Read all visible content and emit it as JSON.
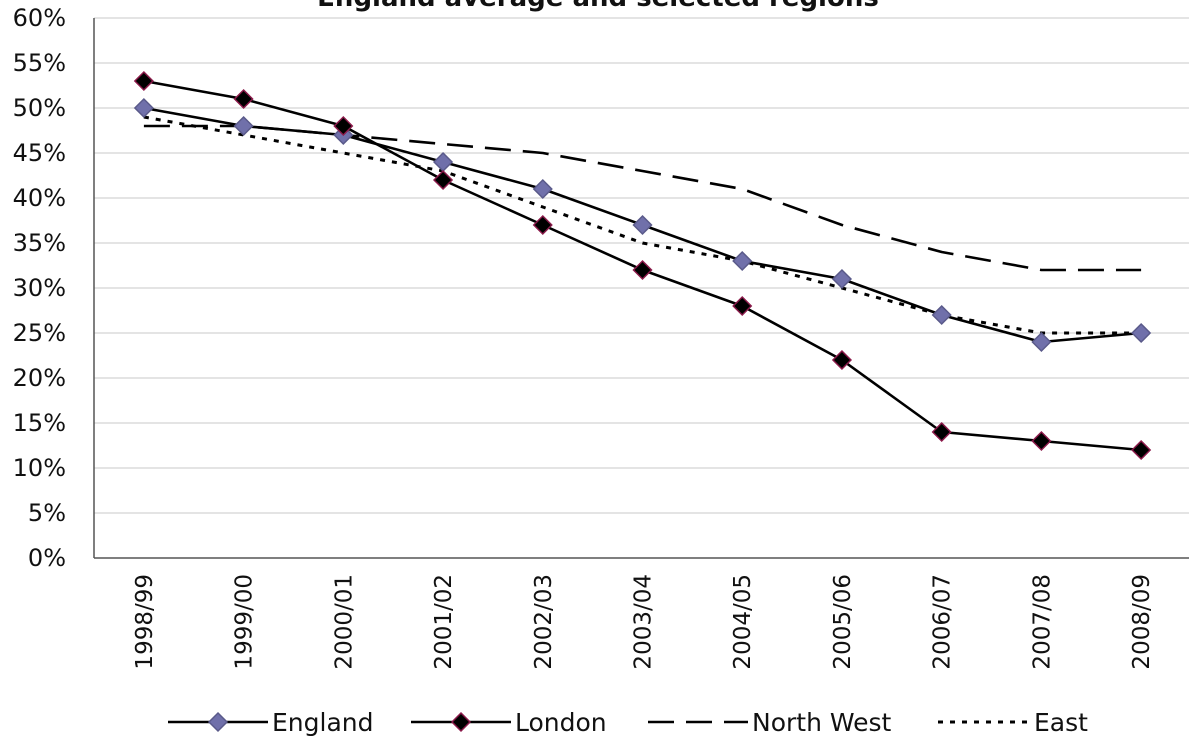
{
  "chart_data": {
    "type": "line",
    "title": "England average and selected regions",
    "xlabel": "",
    "ylabel": "",
    "categories": [
      "1998/99",
      "1999/00",
      "2000/01",
      "2001/02",
      "2002/03",
      "2003/04",
      "2004/05",
      "2005/06",
      "2006/07",
      "2007/08",
      "2008/09"
    ],
    "ylim": [
      0,
      60
    ],
    "ytick_step": 5,
    "yticks": [
      "0%",
      "5%",
      "10%",
      "15%",
      "20%",
      "25%",
      "30%",
      "35%",
      "40%",
      "45%",
      "50%",
      "55%",
      "60%"
    ],
    "grid": true,
    "legend_position": "bottom",
    "series": [
      {
        "name": "England",
        "values": [
          50,
          48,
          47,
          44,
          41,
          37,
          33,
          31,
          27,
          24,
          25
        ],
        "line_style": "solid",
        "marker": "diamond",
        "marker_color": "#7070aa",
        "line_color": "#000000"
      },
      {
        "name": "London",
        "values": [
          53,
          51,
          48,
          42,
          37,
          32,
          28,
          22,
          14,
          13,
          12
        ],
        "line_style": "solid",
        "marker": "diamond",
        "marker_color": "#000000",
        "marker_edge": "#8b1a4a",
        "line_color": "#000000"
      },
      {
        "name": "North West",
        "values": [
          48,
          48,
          47,
          46,
          45,
          43,
          41,
          37,
          34,
          32,
          32
        ],
        "line_style": "long-dash",
        "marker": "none",
        "line_color": "#000000"
      },
      {
        "name": "East",
        "values": [
          49,
          47,
          45,
          43,
          39,
          35,
          33,
          30,
          27,
          25,
          25
        ],
        "line_style": "dotted",
        "marker": "none",
        "line_color": "#000000"
      }
    ]
  }
}
